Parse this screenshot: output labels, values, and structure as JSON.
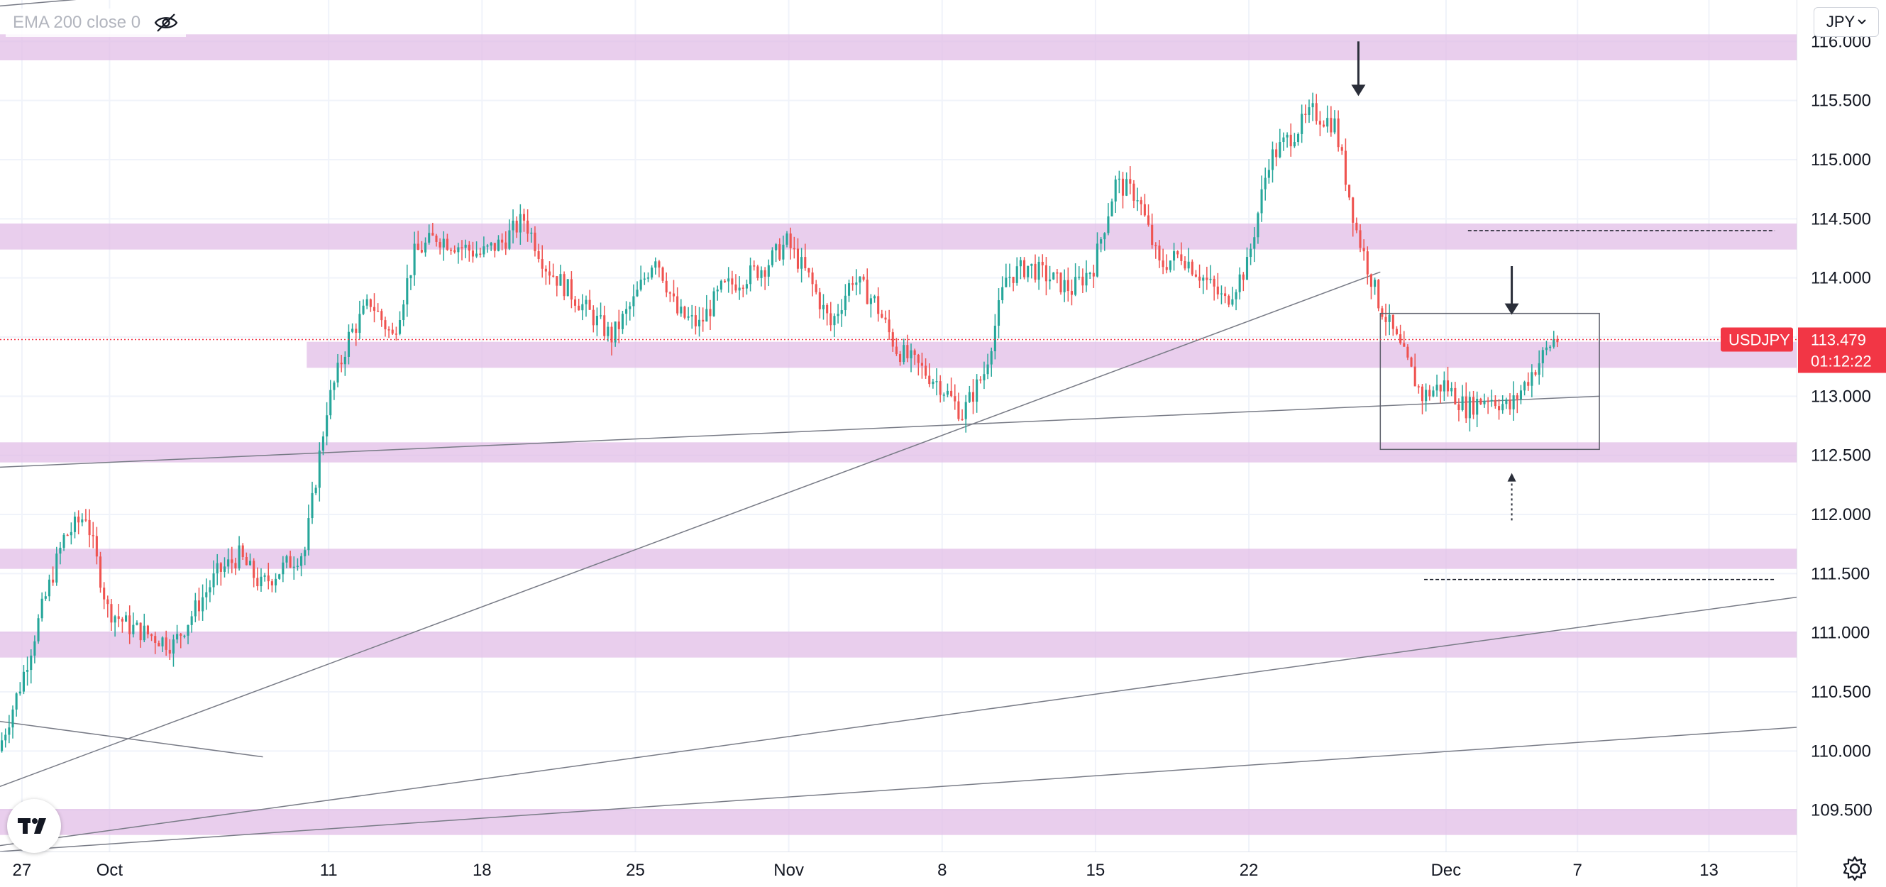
{
  "indicator": {
    "label": "EMA 200 close 0"
  },
  "currency_selector": {
    "value": "JPY"
  },
  "symbol": {
    "name": "USDJPY",
    "price": "113.479",
    "countdown": "01:12:22"
  },
  "colors": {
    "up": "#26a69a",
    "down": "#ef5350",
    "zone": "#e1bee7",
    "label_bg": "#f23645",
    "trendline": "#787b86"
  },
  "chart_data": {
    "type": "candlestick",
    "title": "",
    "symbol": "USDJPY",
    "timeframe": "4h",
    "y_ticks": [
      "109.500",
      "110.000",
      "110.500",
      "111.000",
      "111.500",
      "112.000",
      "112.500",
      "113.000",
      "113.500",
      "114.000",
      "114.500",
      "115.000",
      "115.500",
      "116.000"
    ],
    "x_ticks": [
      "27",
      "Oct",
      "11",
      "18",
      "25",
      "Nov",
      "8",
      "15",
      "22",
      "Dec",
      "7",
      "13"
    ],
    "x_tick_dates": [
      "2021-09-27",
      "2021-10-01",
      "2021-10-11",
      "2021-10-18",
      "2021-10-25",
      "2021-11-01",
      "2021-11-08",
      "2021-11-15",
      "2021-11-22",
      "2021-12-01",
      "2021-12-07",
      "2021-12-13"
    ],
    "ylim": [
      109.15,
      116.35
    ],
    "xlim": [
      "2021-09-26",
      "2021-12-17"
    ],
    "last_price": 113.479,
    "price_path": [
      [
        "2021-09-26",
        110.0
      ],
      [
        "2021-09-27",
        110.55
      ],
      [
        "2021-09-28",
        111.2
      ],
      [
        "2021-09-29",
        111.8
      ],
      [
        "2021-09-30",
        112.0
      ],
      [
        "2021-10-01",
        111.2
      ],
      [
        "2021-10-02",
        111.05
      ],
      [
        "2021-10-04",
        110.9
      ],
      [
        "2021-10-06",
        111.5
      ],
      [
        "2021-10-07",
        111.65
      ],
      [
        "2021-10-08",
        111.4
      ],
      [
        "2021-10-10",
        111.7
      ],
      [
        "2021-10-11",
        112.9
      ],
      [
        "2021-10-12",
        113.5
      ],
      [
        "2021-10-13",
        113.8
      ],
      [
        "2021-10-14",
        113.5
      ],
      [
        "2021-10-15",
        114.2
      ],
      [
        "2021-10-16",
        114.35
      ],
      [
        "2021-10-18",
        114.2
      ],
      [
        "2021-10-19",
        114.3
      ],
      [
        "2021-10-20",
        114.5
      ],
      [
        "2021-10-21",
        114.1
      ],
      [
        "2021-10-22",
        113.9
      ],
      [
        "2021-10-24",
        113.5
      ],
      [
        "2021-10-25",
        113.8
      ],
      [
        "2021-10-26",
        114.2
      ],
      [
        "2021-10-27",
        113.7
      ],
      [
        "2021-10-28",
        113.6
      ],
      [
        "2021-10-29",
        113.9
      ],
      [
        "2021-10-31",
        114.1
      ],
      [
        "2021-11-01",
        114.3
      ],
      [
        "2021-11-02",
        114.0
      ],
      [
        "2021-11-03",
        113.6
      ],
      [
        "2021-11-04",
        114.0
      ],
      [
        "2021-11-05",
        113.8
      ],
      [
        "2021-11-06",
        113.4
      ],
      [
        "2021-11-08",
        113.1
      ],
      [
        "2021-11-09",
        112.85
      ],
      [
        "2021-11-10",
        113.2
      ],
      [
        "2021-11-11",
        114.0
      ],
      [
        "2021-11-12",
        114.1
      ],
      [
        "2021-11-14",
        113.9
      ],
      [
        "2021-11-15",
        114.1
      ],
      [
        "2021-11-16",
        114.8
      ],
      [
        "2021-11-17",
        114.7
      ],
      [
        "2021-11-18",
        114.1
      ],
      [
        "2021-11-19",
        114.2
      ],
      [
        "2021-11-21",
        113.8
      ],
      [
        "2021-11-22",
        114.1
      ],
      [
        "2021-11-23",
        115.0
      ],
      [
        "2021-11-24",
        115.2
      ],
      [
        "2021-11-25",
        115.4
      ],
      [
        "2021-11-26",
        115.3
      ],
      [
        "2021-11-27",
        114.4
      ],
      [
        "2021-11-28",
        113.8
      ],
      [
        "2021-11-29",
        113.4
      ],
      [
        "2021-11-30",
        113.0
      ],
      [
        "2021-12-01",
        113.1
      ],
      [
        "2021-12-02",
        112.9
      ],
      [
        "2021-12-03",
        113.0
      ],
      [
        "2021-12-04",
        112.9
      ],
      [
        "2021-12-05",
        113.2
      ],
      [
        "2021-12-06",
        113.479
      ]
    ],
    "horizontal_zones": [
      {
        "low": 115.9,
        "high": 116.0
      },
      {
        "low": 114.3,
        "high": 114.4
      },
      {
        "low": 113.3,
        "high": 113.4
      },
      {
        "low": 112.5,
        "high": 112.55
      },
      {
        "low": 111.6,
        "high": 111.65
      },
      {
        "low": 110.85,
        "high": 110.95
      },
      {
        "low": 109.35,
        "high": 109.45
      }
    ],
    "range_box": {
      "x0": "2021-11-28",
      "x1": "2021-12-08",
      "y_low": 112.55,
      "y_high": 113.7
    },
    "dashed_levels": [
      {
        "value": 114.4,
        "x0": "2021-12-02",
        "x1": "2021-12-16"
      },
      {
        "value": 111.45,
        "x0": "2021-11-30",
        "x1": "2021-12-16"
      }
    ],
    "trendlines": [
      {
        "x0": "2021-09-26",
        "y0": 116.3,
        "x1": "2021-10-28",
        "y1": 116.8
      },
      {
        "x0": "2021-09-26",
        "y0": 109.7,
        "x1": "2021-11-28",
        "y1": 114.05
      },
      {
        "x0": "2021-09-26",
        "y0": 112.4,
        "x1": "2021-12-08",
        "y1": 113.0
      },
      {
        "x0": "2021-09-26",
        "y0": 110.25,
        "x1": "2021-10-08",
        "y1": 109.95
      },
      {
        "x0": "2021-09-26",
        "y0": 109.2,
        "x1": "2021-12-17",
        "y1": 111.3
      },
      {
        "x0": "2021-09-26",
        "y0": 109.15,
        "x1": "2021-12-17",
        "y1": 110.2
      }
    ],
    "arrows": [
      {
        "type": "solid-down",
        "x": "2021-11-27",
        "y_top": 116.0,
        "y_bottom": 115.55
      },
      {
        "type": "solid-down",
        "x": "2021-12-04",
        "y_top": 114.1,
        "y_bottom": 113.7
      },
      {
        "type": "dotted-up",
        "x": "2021-12-04",
        "y_top": 112.35,
        "y_bottom": 111.95
      }
    ]
  }
}
